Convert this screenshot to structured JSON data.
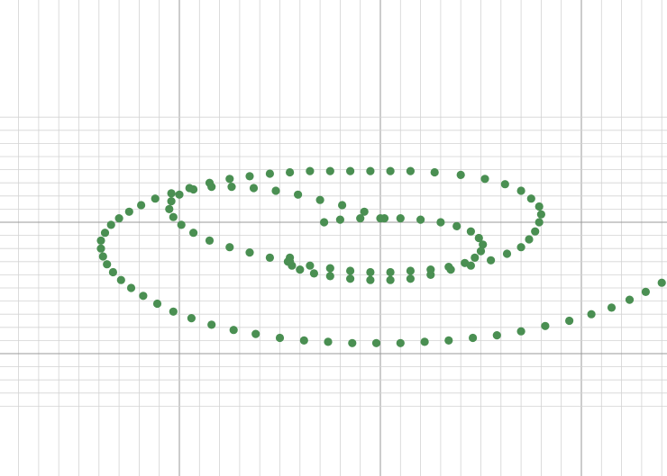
{
  "chart_data": {
    "type": "scatter",
    "title": "",
    "xlabel": "",
    "ylabel": "",
    "xlim": [
      -1.9,
      1.45
    ],
    "ylim": [
      -1.2,
      0.6
    ],
    "grid": true,
    "marker_color": "#4a8f52",
    "grid_minor_color": "#d3d3d3",
    "grid_major_color": "#999999",
    "series": [
      {
        "name": "",
        "points": [
          [
            -0.45,
            -0.27
          ],
          [
            -0.46,
            -0.3
          ],
          [
            -0.44,
            -0.33
          ],
          [
            -0.4,
            -0.36
          ],
          [
            -0.33,
            -0.39
          ],
          [
            -0.25,
            -0.41
          ],
          [
            -0.15,
            -0.43
          ],
          [
            -0.05,
            -0.44
          ],
          [
            0.05,
            -0.44
          ],
          [
            0.15,
            -0.43
          ],
          [
            0.25,
            -0.4
          ],
          [
            0.35,
            -0.36
          ],
          [
            0.45,
            -0.33
          ],
          [
            0.55,
            -0.29
          ],
          [
            0.63,
            -0.24
          ],
          [
            0.7,
            -0.19
          ],
          [
            0.74,
            -0.13
          ],
          [
            0.77,
            -0.07
          ],
          [
            0.79,
            0.0
          ],
          [
            0.8,
            0.06
          ],
          [
            0.79,
            0.12
          ],
          [
            0.75,
            0.18
          ],
          [
            0.7,
            0.24
          ],
          [
            0.62,
            0.29
          ],
          [
            0.52,
            0.33
          ],
          [
            0.4,
            0.36
          ],
          [
            0.27,
            0.38
          ],
          [
            0.15,
            0.39
          ],
          [
            0.05,
            0.39
          ],
          [
            -0.05,
            0.39
          ],
          [
            -0.15,
            0.39
          ],
          [
            -0.25,
            0.39
          ],
          [
            -0.35,
            0.39
          ],
          [
            -0.45,
            0.38
          ],
          [
            -0.55,
            0.37
          ],
          [
            -0.65,
            0.35
          ],
          [
            -0.75,
            0.33
          ],
          [
            -0.85,
            0.3
          ],
          [
            -0.95,
            0.26
          ],
          [
            -1.04,
            0.22
          ],
          [
            -1.12,
            0.18
          ],
          [
            -1.19,
            0.13
          ],
          [
            -1.25,
            0.08
          ],
          [
            -1.3,
            0.03
          ],
          [
            -1.34,
            -0.02
          ],
          [
            -1.37,
            -0.08
          ],
          [
            -1.39,
            -0.14
          ],
          [
            -1.39,
            -0.2
          ],
          [
            -1.38,
            -0.26
          ],
          [
            -1.36,
            -0.32
          ],
          [
            -1.33,
            -0.38
          ],
          [
            -1.29,
            -0.44
          ],
          [
            -1.24,
            -0.5
          ],
          [
            -1.18,
            -0.56
          ],
          [
            -1.11,
            -0.62
          ],
          [
            -1.03,
            -0.68
          ],
          [
            -0.94,
            -0.73
          ],
          [
            -0.84,
            -0.78
          ],
          [
            -0.73,
            -0.82
          ],
          [
            -0.62,
            -0.85
          ],
          [
            -0.5,
            -0.88
          ],
          [
            -0.38,
            -0.9
          ],
          [
            -0.26,
            -0.91
          ],
          [
            -0.14,
            -0.92
          ],
          [
            -0.02,
            -0.92
          ],
          [
            0.1,
            -0.92
          ],
          [
            0.22,
            -0.91
          ],
          [
            0.34,
            -0.9
          ],
          [
            0.46,
            -0.88
          ],
          [
            0.58,
            -0.86
          ],
          [
            0.7,
            -0.83
          ],
          [
            0.82,
            -0.79
          ],
          [
            0.94,
            -0.75
          ],
          [
            1.05,
            -0.7
          ],
          [
            1.15,
            -0.65
          ],
          [
            1.24,
            -0.59
          ],
          [
            1.32,
            -0.53
          ],
          [
            1.4,
            -0.46
          ],
          [
            -0.28,
            0.0
          ],
          [
            -0.2,
            0.02
          ],
          [
            -0.1,
            0.03
          ],
          [
            0.0,
            0.03
          ],
          [
            0.1,
            0.03
          ],
          [
            0.2,
            0.02
          ],
          [
            0.3,
            0.0
          ],
          [
            0.38,
            -0.03
          ],
          [
            0.45,
            -0.07
          ],
          [
            0.49,
            -0.12
          ],
          [
            0.51,
            -0.17
          ],
          [
            0.5,
            -0.22
          ],
          [
            0.47,
            -0.27
          ],
          [
            0.42,
            -0.31
          ],
          [
            0.34,
            -0.34
          ],
          [
            0.25,
            -0.36
          ],
          [
            0.15,
            -0.37
          ],
          [
            0.05,
            -0.38
          ],
          [
            -0.05,
            -0.38
          ],
          [
            -0.15,
            -0.37
          ],
          [
            -0.25,
            -0.35
          ],
          [
            -0.35,
            -0.33
          ],
          [
            -0.45,
            -0.3
          ],
          [
            -0.55,
            -0.27
          ],
          [
            -0.65,
            -0.23
          ],
          [
            -0.75,
            -0.19
          ],
          [
            -0.85,
            -0.14
          ],
          [
            -0.93,
            -0.08
          ],
          [
            -0.99,
            -0.02
          ],
          [
            -1.03,
            0.04
          ],
          [
            -1.05,
            0.1
          ],
          [
            -1.04,
            0.16
          ],
          [
            -1.0,
            0.21
          ],
          [
            -0.93,
            0.25
          ],
          [
            -0.84,
            0.27
          ],
          [
            -0.74,
            0.27
          ],
          [
            -0.63,
            0.26
          ],
          [
            -0.52,
            0.24
          ],
          [
            -0.41,
            0.21
          ],
          [
            -0.3,
            0.17
          ],
          [
            -0.19,
            0.13
          ],
          [
            -0.08,
            0.08
          ],
          [
            0.02,
            0.03
          ]
        ]
      }
    ]
  }
}
